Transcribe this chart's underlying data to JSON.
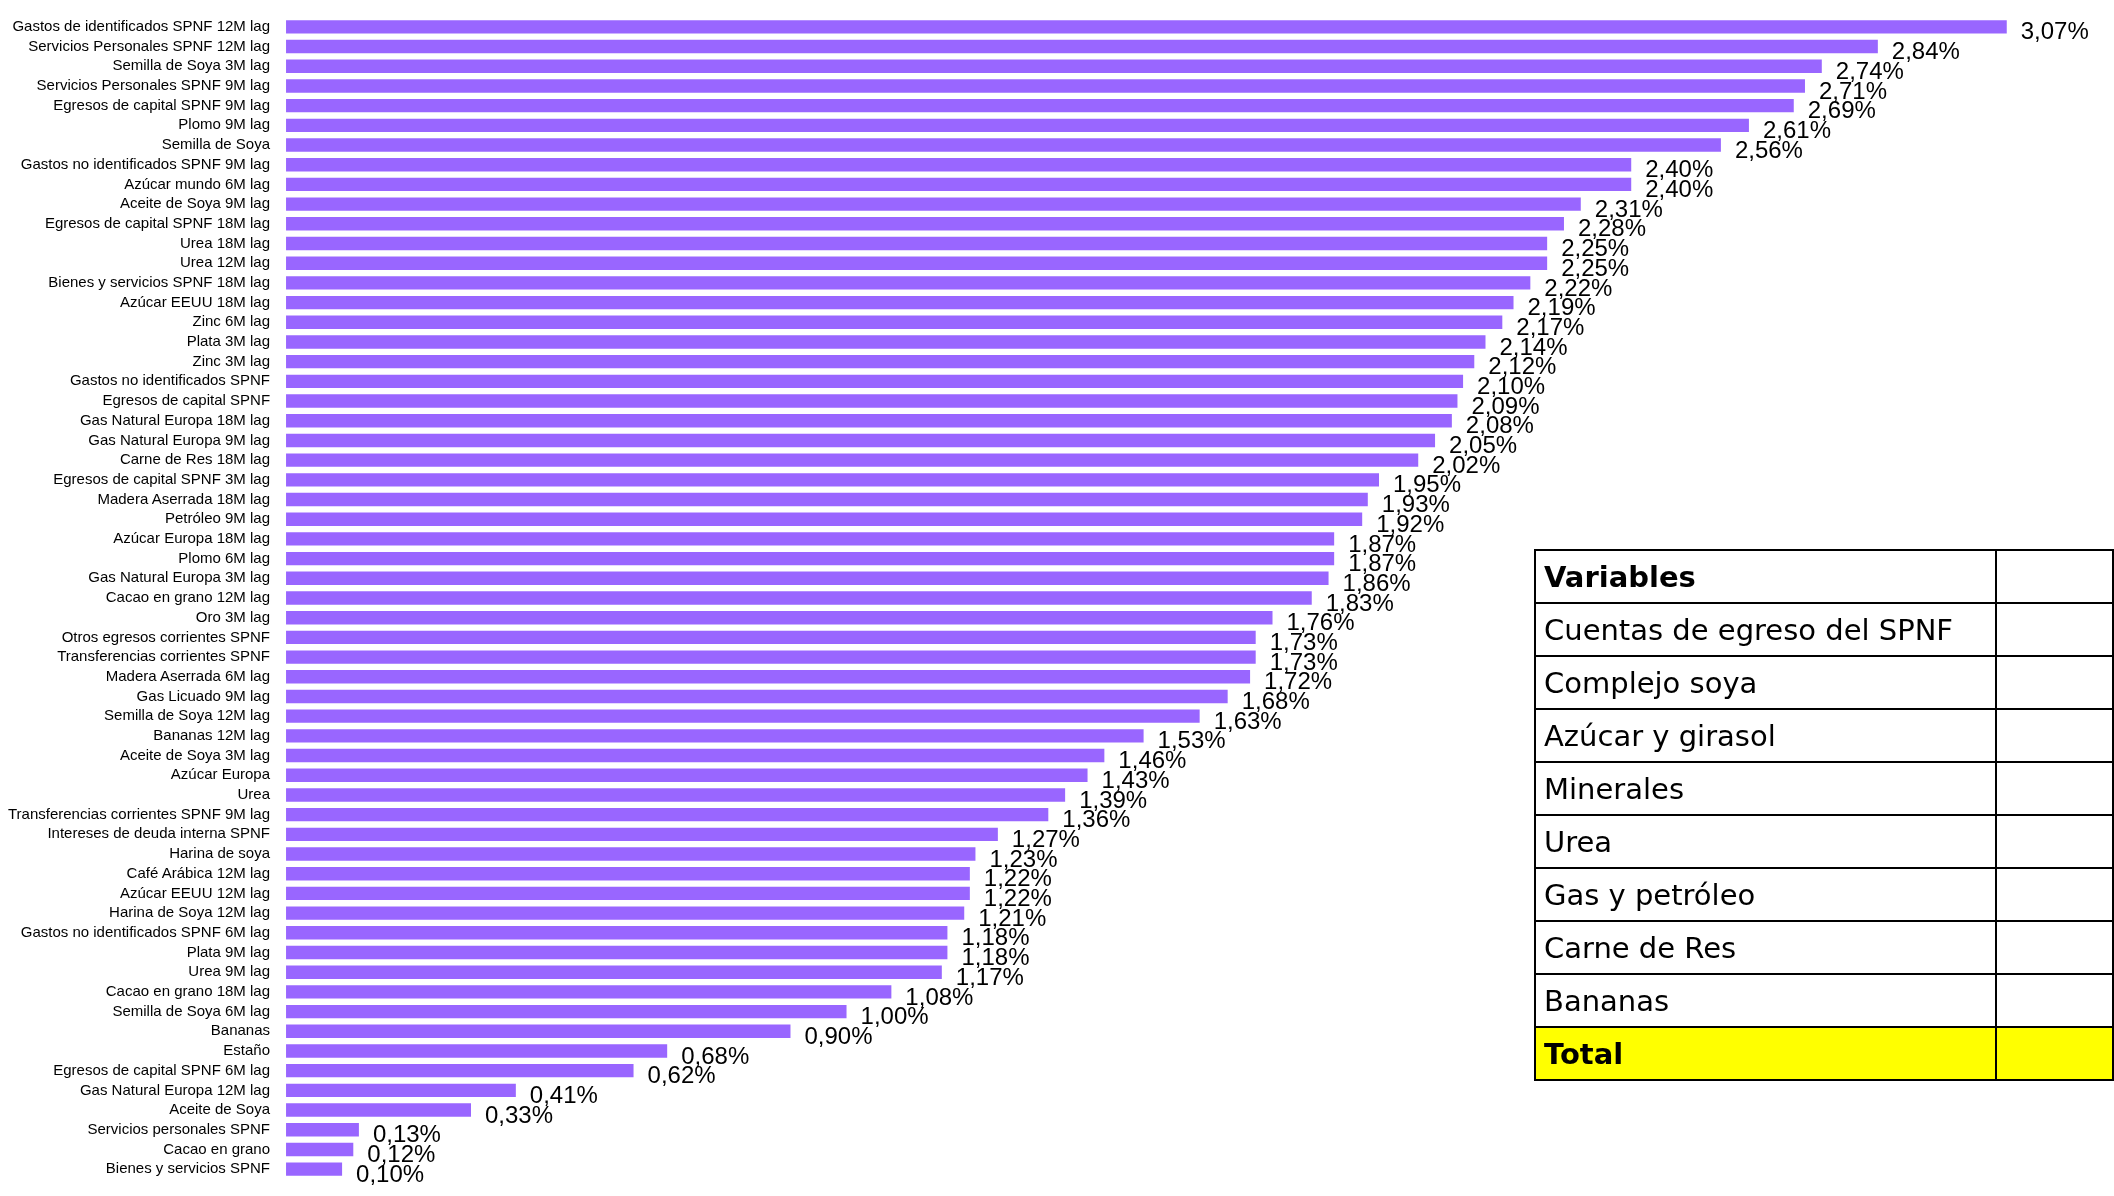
{
  "chart_data": {
    "type": "bar",
    "orientation": "horizontal",
    "color": "#9966ff",
    "data_labels": false,
    "legend": false,
    "categories": [
      "Gastos de identificados SPNF 12M lag",
      "Servicios Personales SPNF 12M lag",
      "Semilla de Soya 3M lag",
      "Servicios Personales SPNF 9M lag",
      "Egresos de capital SPNF 9M lag",
      "Plomo 9M lag",
      "Semilla de Soya",
      "Gastos no identificados SPNF 9M lag",
      "Azúcar mundo 6M lag",
      "Aceite de Soya 9M lag",
      "Egresos de capital SPNF 18M lag",
      "Urea 18M lag",
      "Urea 12M lag",
      "Bienes y servicios SPNF 18M lag",
      "Azúcar EEUU 18M lag",
      "Zinc 6M lag",
      "Plata 3M lag",
      "Zinc 3M lag",
      "Gastos no identificados SPNF",
      "Egresos de capital SPNF",
      "Gas Natural Europa 18M lag",
      "Gas Natural Europa 9M lag",
      "Carne de Res 18M lag",
      "Egresos de capital SPNF 3M lag",
      "Madera Aserrada 18M lag",
      "Petróleo 9M lag",
      "Azúcar Europa 18M lag",
      "Plomo 6M lag",
      "Gas Natural Europa 3M lag",
      "Cacao en grano 12M lag",
      "Oro 3M lag",
      "Otros egresos corrientes SPNF",
      "Transferencias corrientes SPNF",
      "Madera Aserrada 6M lag",
      "Gas Licuado 9M lag",
      "Semilla de Soya 12M lag",
      "Bananas 12M lag",
      "Aceite de Soya 3M lag",
      "Azúcar Europa",
      "Urea",
      "Transferencias corrientes SPNF 9M lag",
      "Intereses de deuda interna SPNF",
      "Harina de soya",
      "Café Arábica 12M lag",
      "Azúcar EEUU 12M lag",
      "Harina de Soya 12M lag",
      "Gastos no identificados SPNF 6M lag",
      "Plata 9M lag",
      "Urea 9M lag",
      "Cacao en grano 18M lag",
      "Semilla de Soya 6M lag",
      "Bananas",
      "Estaño",
      "Egresos de capital SPNF 6M lag",
      "Gas Natural Europa 12M lag",
      "Aceite de Soya",
      "Servicios personales SPNF",
      "Cacao en grano",
      "Bienes y servicios SPNF"
    ],
    "values": [
      3.07,
      2.84,
      2.74,
      2.71,
      2.69,
      2.61,
      2.56,
      2.4,
      2.4,
      2.31,
      2.28,
      2.25,
      2.25,
      2.22,
      2.19,
      2.17,
      2.14,
      2.12,
      2.1,
      2.09,
      2.08,
      2.05,
      2.02,
      1.95,
      1.93,
      1.92,
      1.87,
      1.87,
      1.86,
      1.83,
      1.76,
      1.73,
      1.73,
      1.72,
      1.68,
      1.63,
      1.53,
      1.46,
      1.43,
      1.39,
      1.36,
      1.27,
      1.23,
      1.22,
      1.22,
      1.21,
      1.18,
      1.18,
      1.17,
      1.08,
      1.0,
      0.9,
      0.68,
      0.62,
      0.41,
      0.33,
      0.13,
      0.12,
      0.1
    ],
    "value_labels": [
      "3,07%",
      "2,84%",
      "2,74%",
      "2,71%",
      "2,69%",
      "2,61%",
      "2,56%",
      "2,40%",
      "2,40%",
      "2,31%",
      "2,28%",
      "2,25%",
      "2,25%",
      "2,22%",
      "2,19%",
      "2,17%",
      "2,14%",
      "2,12%",
      "2,10%",
      "2,09%",
      "2,08%",
      "2,05%",
      "2,02%",
      "1,95%",
      "1,93%",
      "1,92%",
      "1,87%",
      "1,87%",
      "1,86%",
      "1,83%",
      "1,76%",
      "1,73%",
      "1,73%",
      "1,72%",
      "1,68%",
      "1,63%",
      "1,53%",
      "1,46%",
      "1,43%",
      "1,39%",
      "1,36%",
      "1,27%",
      "1,23%",
      "1,22%",
      "1,22%",
      "1,21%",
      "1,18%",
      "1,18%",
      "1,17%",
      "1,08%",
      "1,00%",
      "0,90%",
      "0,68%",
      "0,62%",
      "0,41%",
      "0,33%",
      "0,13%",
      "0,12%",
      "0,10%"
    ],
    "annotations": [
      "Variables",
      "Cuentas de egreso del SPNF",
      "Complejo soya",
      "Azúcar y girasol",
      "Minerales",
      "Urea",
      "Gas y petróleo",
      "Carne de Res",
      "Bananas",
      "Total"
    ]
  }
}
